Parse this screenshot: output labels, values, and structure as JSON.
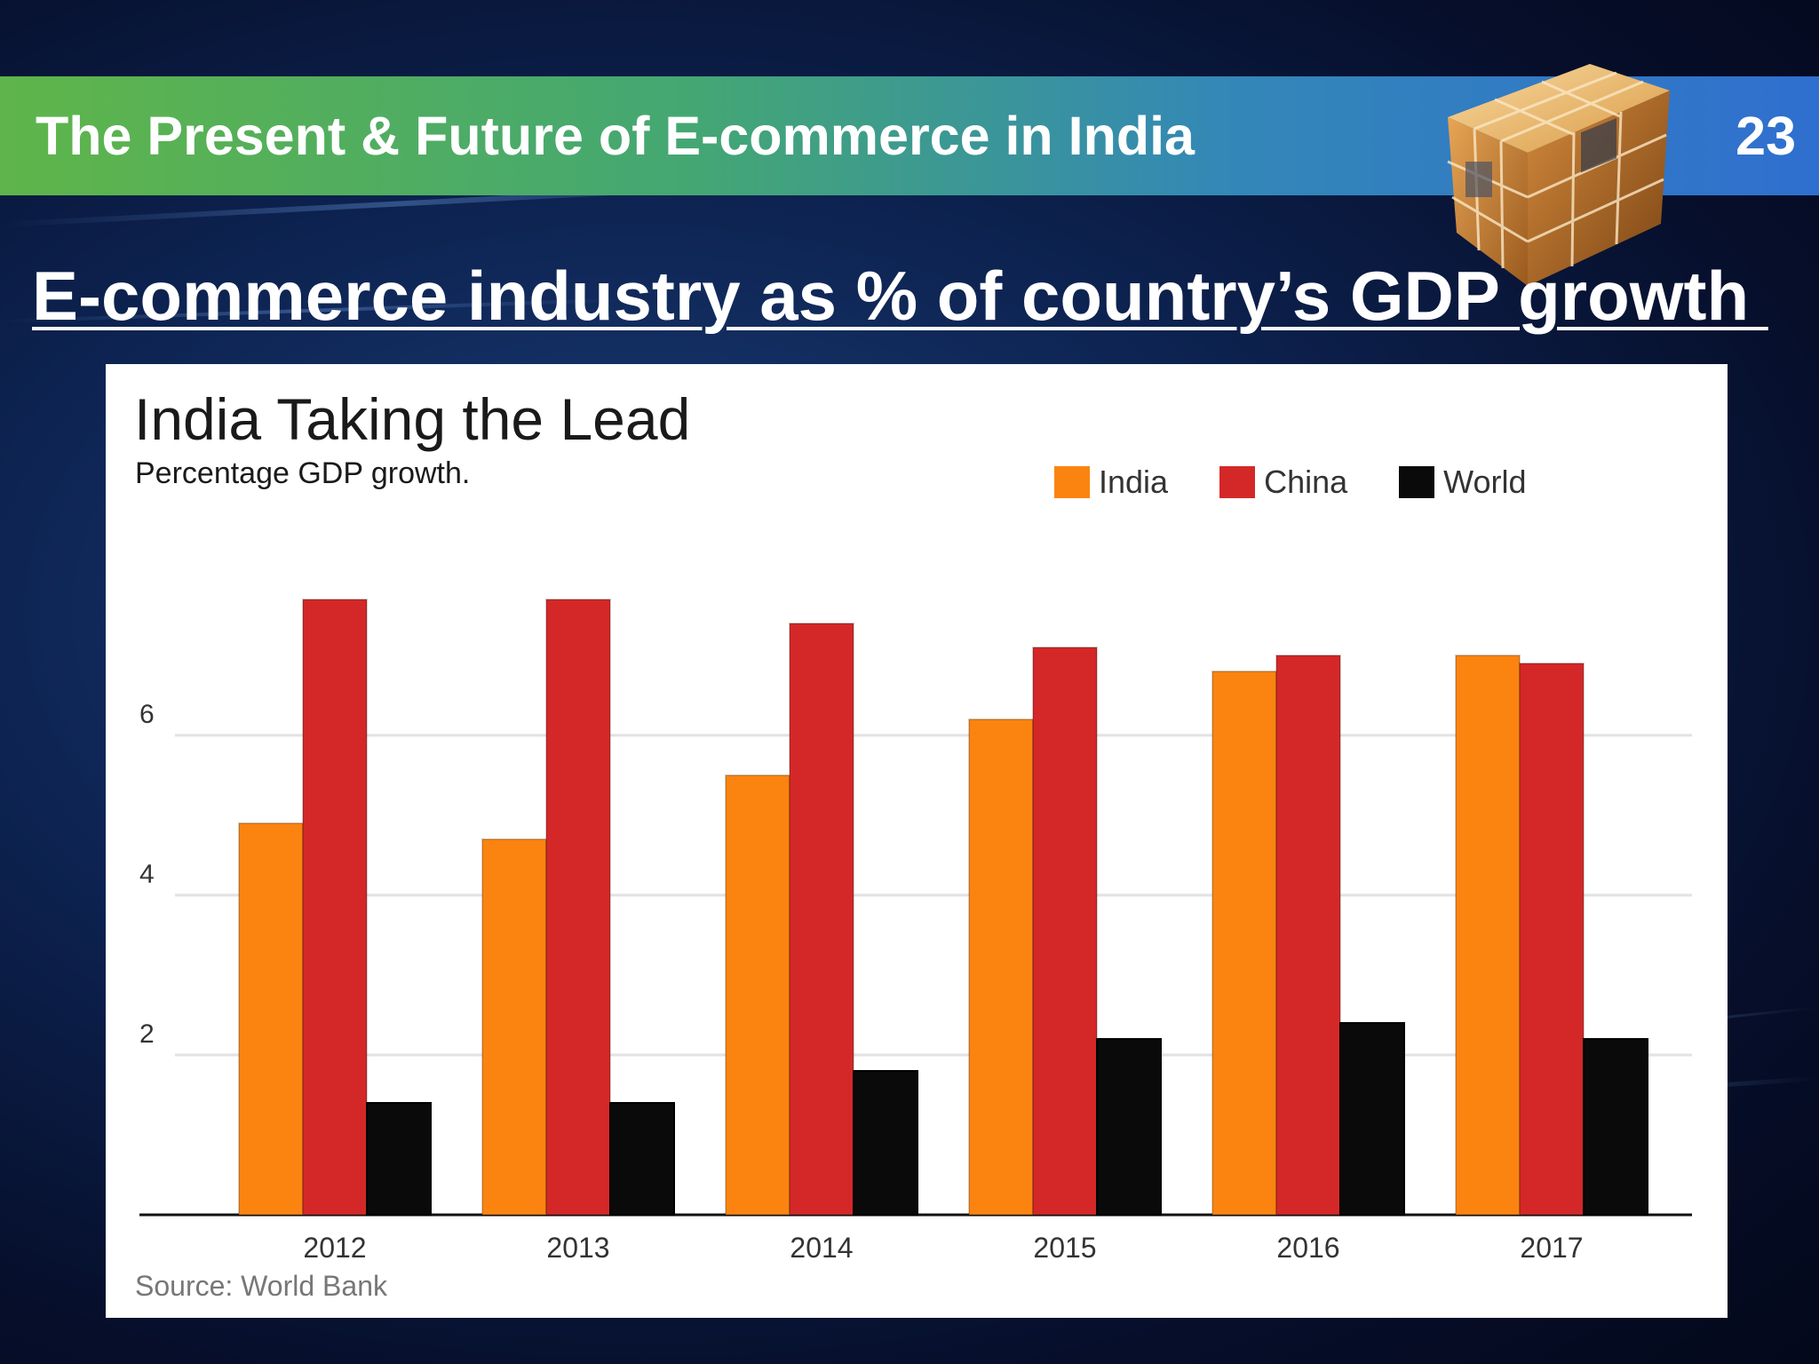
{
  "header": {
    "title": "The Present & Future of E-commerce in India",
    "slide_number": "23"
  },
  "subtitle": "E-commerce industry as % of country’s GDP growth ",
  "colors": {
    "india": "#fb8411",
    "china": "#d42828",
    "world": "#0a0a0a"
  },
  "chart_data": {
    "type": "bar",
    "title": "India Taking the Lead",
    "subtitle": "Percentage GDP growth.",
    "source": "Source: World Bank",
    "xlabel": "",
    "ylabel": "",
    "categories": [
      "2012",
      "2013",
      "2014",
      "2015",
      "2016",
      "2017"
    ],
    "series": [
      {
        "name": "India",
        "values": [
          4.9,
          4.7,
          5.5,
          6.2,
          6.8,
          7.0
        ]
      },
      {
        "name": "China",
        "values": [
          7.7,
          7.7,
          7.4,
          7.1,
          7.0,
          6.9
        ]
      },
      {
        "name": "World",
        "values": [
          1.4,
          1.4,
          1.8,
          2.2,
          2.4,
          2.2
        ]
      }
    ],
    "yticks": [
      2,
      4,
      6
    ],
    "ylim": [
      0,
      8
    ],
    "grid": true,
    "legend": "top-right"
  }
}
